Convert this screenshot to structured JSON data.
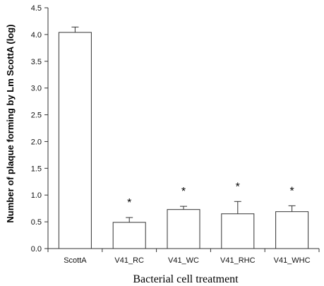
{
  "chart_data": {
    "type": "bar",
    "title": "",
    "xlabel": "Bacterial cell treatment",
    "ylabel": "Number of plaque forming by Lm ScottA (log)",
    "ylim": [
      0,
      4.5
    ],
    "y_ticks": [
      "0.0",
      "0.5",
      "1.0",
      "1.5",
      "2.0",
      "2.5",
      "3.0",
      "3.5",
      "4.0",
      "4.5"
    ],
    "categories": [
      "ScottA",
      "V41_RC",
      "V41_WC",
      "V41_RHC",
      "V41_WHC"
    ],
    "values": [
      4.04,
      0.49,
      0.73,
      0.65,
      0.69
    ],
    "error_bars": [
      0.1,
      0.09,
      0.06,
      0.23,
      0.11
    ],
    "annotations": [
      "",
      "*",
      "*",
      "*",
      "*"
    ],
    "grid": false,
    "bar_fill": "#ffffff",
    "bar_stroke": "#333333"
  }
}
